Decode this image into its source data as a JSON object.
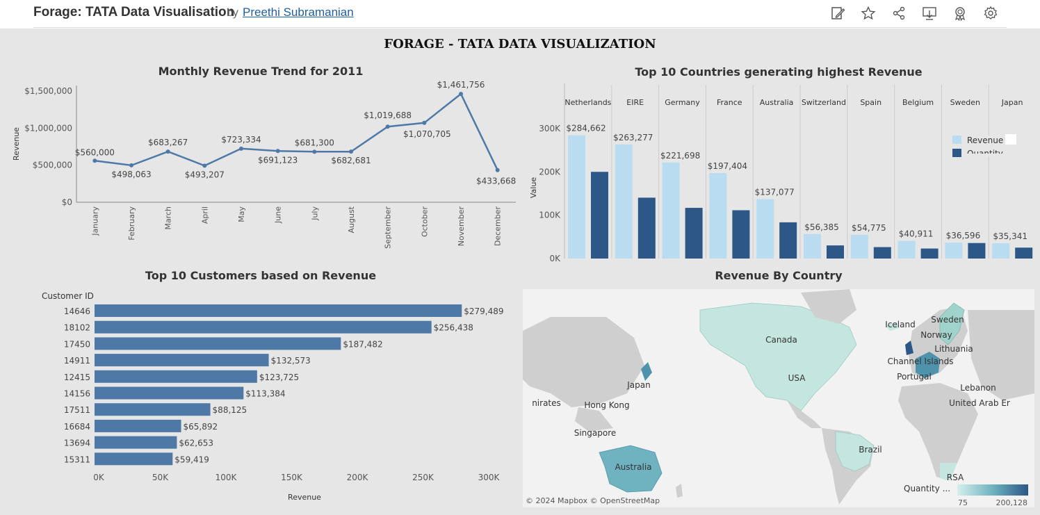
{
  "header": {
    "title": "Forage: TATA Data Visualisation",
    "by": "by",
    "author": "Preethi Subramanian",
    "icons": [
      "edit-icon",
      "star-icon",
      "share-icon",
      "download-icon",
      "badge-icon",
      "gear-icon"
    ]
  },
  "dashboard_title": "FORAGE - TATA DATA VISUALIZATION",
  "colors": {
    "line": "#4e79a7",
    "bar": "#4e79a7",
    "revenue": "#b9dcf0",
    "quantity": "#2c5787",
    "map_land": "#cfcfcf",
    "map_water": "#f2f2f2"
  },
  "chart_data": [
    {
      "type": "line",
      "title": "Monthly Revenue Trend for 2011",
      "ylabel": "Revenue",
      "xlabel": "",
      "categories": [
        "January",
        "February",
        "March",
        "April",
        "May",
        "June",
        "July",
        "August",
        "September",
        "October",
        "November",
        "December"
      ],
      "values": [
        560000,
        498063,
        683267,
        493207,
        723334,
        691123,
        681300,
        682681,
        1019688,
        1070705,
        1461756,
        433668
      ],
      "data_labels": [
        "$560,000",
        "$498,063",
        "$683,267",
        "$493,207",
        "$723,334",
        "$691,123",
        "$681,300",
        "$682,681",
        "$1,019,688",
        "$1,070,705",
        "$1,461,756",
        "$433,668"
      ],
      "yticks": [
        0,
        500000,
        1000000,
        1500000
      ],
      "ytick_labels": [
        "$0",
        "$500,000",
        "$1,000,000",
        "$1,500,000"
      ],
      "ylim": [
        0,
        1500000
      ],
      "grid": false
    },
    {
      "type": "bar",
      "title": "Top 10 Countries generating highest Revenue",
      "ylabel": "Value",
      "categories": [
        "Netherlands",
        "EIRE",
        "Germany",
        "France",
        "Australia",
        "Switzerland",
        "Spain",
        "Belgium",
        "Sweden",
        "Japan"
      ],
      "series": [
        {
          "name": "Revenue",
          "values": [
            284662,
            263277,
            221698,
            197404,
            137077,
            56385,
            54775,
            40911,
            36596,
            35341
          ],
          "data_labels": [
            "$284,662",
            "$263,277",
            "$221,698",
            "$197,404",
            "$137,077",
            "$56,385",
            "$54,775",
            "$40,911",
            "$36,596",
            "$35,341"
          ]
        },
        {
          "name": "Quantity",
          "values": [
            200128,
            140500,
            117000,
            111500,
            83600,
            30300,
            26400,
            23100,
            35800,
            25200
          ]
        }
      ],
      "yticks": [
        0,
        100000,
        200000,
        300000
      ],
      "ytick_labels": [
        "0K",
        "100K",
        "200K",
        "300K"
      ],
      "ylim": [
        0,
        300000
      ],
      "legend": "top-right",
      "legend_labels": [
        "Revenue",
        "Quantity"
      ]
    },
    {
      "type": "bar",
      "orientation": "horizontal",
      "title": "Top 10 Customers based on Revenue",
      "xlabel": "Revenue",
      "category_header": "Customer ID",
      "categories": [
        "14646",
        "18102",
        "17450",
        "14911",
        "12415",
        "14156",
        "17511",
        "16684",
        "13694",
        "15311"
      ],
      "values": [
        279489,
        256438,
        187482,
        132573,
        123725,
        113384,
        88125,
        65892,
        62653,
        59419
      ],
      "data_labels": [
        "$279,489",
        "$256,438",
        "$187,482",
        "$132,573",
        "$123,725",
        "$113,384",
        "$88,125",
        "$65,892",
        "$62,653",
        "$59,419"
      ],
      "xticks": [
        0,
        50000,
        100000,
        150000,
        200000,
        250000,
        300000
      ],
      "xtick_labels": [
        "0K",
        "50K",
        "100K",
        "150K",
        "200K",
        "250K",
        "300K"
      ],
      "xlim": [
        0,
        300000
      ]
    }
  ],
  "map": {
    "title": "Revenue By Country",
    "labels": [
      "Canada",
      "USA",
      "Brazil",
      "Australia",
      "Japan",
      "Hong Kong",
      "Singapore",
      "nirates",
      "Iceland",
      "Sweden",
      "Norway",
      "Lithuania",
      "Channel Islands",
      "Portugal",
      "Lebanon",
      "United Arab Er",
      "RSA"
    ],
    "attribution": "© 2024 Mapbox  © OpenStreetMap",
    "legend_title": "Quantity ...",
    "legend_min": "75",
    "legend_max": "200,128"
  }
}
